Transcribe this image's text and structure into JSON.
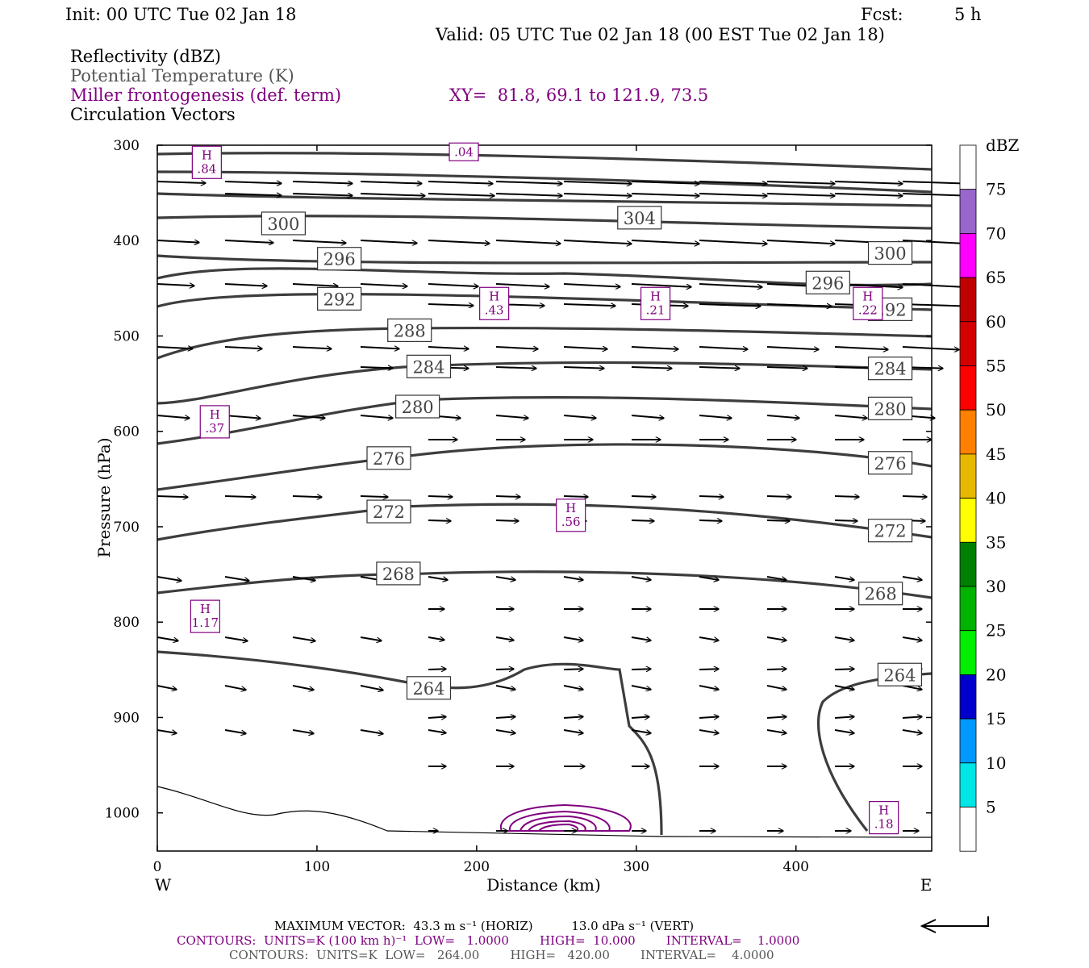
{
  "header": {
    "init": "Init: 00 UTC Tue 02 Jan 18",
    "fcst_label": "Fcst:",
    "fcst_value": "5 h",
    "valid": "Valid: 05 UTC Tue 02 Jan 18 (00 EST Tue 02 Jan 18)"
  },
  "legend": {
    "reflectivity": "Reflectivity (dBZ)",
    "potential_temperature": "Potential Temperature (K)",
    "frontogenesis": "Miller frontogenesis (def. term)",
    "xy": "XY=  81.8, 69.1 to 121.9, 73.5",
    "circulation": "Circulation Vectors"
  },
  "footer": {
    "max_vector": "MAXIMUM VECTOR:  43.3 m s⁻¹ (HORIZ)          13.0 dPa s⁻¹ (VERT)",
    "contours_purple": "CONTOURS:  UNITS=K (100 km h)⁻¹  LOW=   1.0000        HIGH=  10.000        INTERVAL=    1.0000",
    "contours_gray": "CONTOURS:  UNITS=K  LOW=   264.00        HIGH=   420.00        INTERVAL=    4.0000"
  },
  "colorbar": {
    "title": "dBZ",
    "labels": [
      "75",
      "70",
      "65",
      "60",
      "55",
      "50",
      "45",
      "40",
      "35",
      "30",
      "25",
      "20",
      "15",
      "10",
      "5"
    ],
    "colors": [
      "#ffffff",
      "#9966cc",
      "#ff00ff",
      "#c00000",
      "#d40000",
      "#ff0000",
      "#ff8000",
      "#e6b800",
      "#ffff00",
      "#008000",
      "#00b300",
      "#00ee00",
      "#0000cc",
      "#0099ff",
      "#00e5e5",
      "#ffffff"
    ]
  },
  "chart_data": {
    "type": "cross-section",
    "xlabel": "Distance (km)",
    "ylabel": "Pressure (hPa)",
    "xlim": [
      0,
      485
    ],
    "ylim": [
      300,
      1040
    ],
    "x_ticks": [
      "0",
      "100",
      "200",
      "300",
      "400"
    ],
    "y_ticks": [
      "300",
      "400",
      "500",
      "600",
      "700",
      "800",
      "900",
      "1000"
    ],
    "x_end_labels": {
      "west": "W",
      "east": "E"
    },
    "theta_contour_labels": [
      {
        "text": "304",
        "x": 302,
        "p": 376
      },
      {
        "text": "300",
        "x": 79,
        "p": 382
      },
      {
        "text": "296",
        "x": 114,
        "p": 419
      },
      {
        "text": "300",
        "x": 459,
        "p": 413
      },
      {
        "text": "296",
        "x": 420,
        "p": 444
      },
      {
        "text": "292",
        "x": 114,
        "p": 461
      },
      {
        "text": "292",
        "x": 459,
        "p": 472
      },
      {
        "text": "288",
        "x": 158,
        "p": 494
      },
      {
        "text": "284",
        "x": 170,
        "p": 532
      },
      {
        "text": "284",
        "x": 459,
        "p": 534
      },
      {
        "text": "280",
        "x": 163,
        "p": 574
      },
      {
        "text": "280",
        "x": 459,
        "p": 576
      },
      {
        "text": "276",
        "x": 145,
        "p": 628
      },
      {
        "text": "276",
        "x": 459,
        "p": 633
      },
      {
        "text": "272",
        "x": 145,
        "p": 684
      },
      {
        "text": "272",
        "x": 459,
        "p": 704
      },
      {
        "text": "268",
        "x": 151,
        "p": 749
      },
      {
        "text": "268",
        "x": 453,
        "p": 770
      },
      {
        "text": "264",
        "x": 170,
        "p": 869
      },
      {
        "text": "264",
        "x": 465,
        "p": 855
      }
    ],
    "frontogenesis_highs": [
      {
        "text": "H\n.84",
        "x": 31,
        "p": 318
      },
      {
        "text": ".04",
        "x": 192,
        "p": 307
      },
      {
        "text": "H\n.43",
        "x": 211,
        "p": 466
      },
      {
        "text": "H\n.21",
        "x": 312,
        "p": 466
      },
      {
        "text": "H\n.22",
        "x": 445,
        "p": 466
      },
      {
        "text": "H\n.37",
        "x": 36,
        "p": 590
      },
      {
        "text": "H\n.56",
        "x": 259,
        "p": 688
      },
      {
        "text": "H\n1.17",
        "x": 30,
        "p": 794
      },
      {
        "text": "H\n.18",
        "x": 455,
        "p": 1005
      }
    ]
  }
}
